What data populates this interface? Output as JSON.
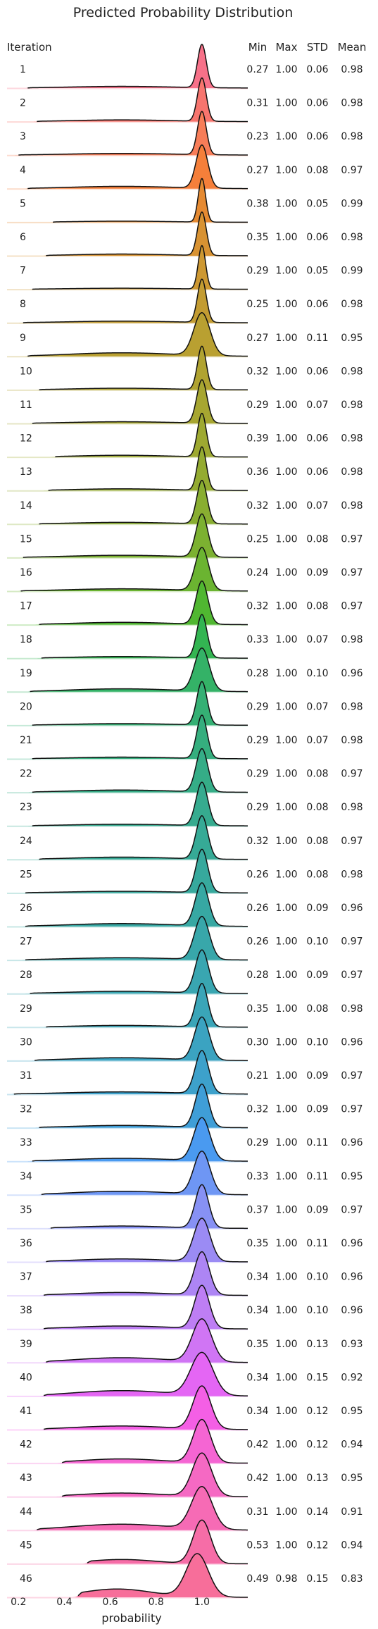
{
  "chart_data": {
    "type": "ridgeline",
    "title": "Predicted Probability Distribution",
    "xlabel": "probability",
    "xlim": [
      0.15,
      1.2
    ],
    "xticks": [
      0.2,
      0.4,
      0.6,
      0.8,
      1.0
    ],
    "xtick_labels": [
      "0.2",
      "0.4",
      "0.6",
      "0.8",
      "1.0"
    ],
    "row_header": "Iteration",
    "stat_headers": [
      "Min",
      "Max",
      "STD",
      "Mean"
    ],
    "rows": [
      {
        "iteration": "1",
        "min": "0.27",
        "max": "1.00",
        "std": "0.06",
        "mean": "0.98",
        "color": "#f77189"
      },
      {
        "iteration": "2",
        "min": "0.31",
        "max": "1.00",
        "std": "0.06",
        "mean": "0.98",
        "color": "#f7756e"
      },
      {
        "iteration": "3",
        "min": "0.23",
        "max": "1.00",
        "std": "0.06",
        "mean": "0.98",
        "color": "#f77d58"
      },
      {
        "iteration": "4",
        "min": "0.27",
        "max": "1.00",
        "std": "0.08",
        "mean": "0.97",
        "color": "#f57f3a"
      },
      {
        "iteration": "5",
        "min": "0.38",
        "max": "1.00",
        "std": "0.05",
        "mean": "0.99",
        "color": "#e58a32"
      },
      {
        "iteration": "6",
        "min": "0.35",
        "max": "1.00",
        "std": "0.06",
        "mean": "0.98",
        "color": "#d89232"
      },
      {
        "iteration": "7",
        "min": "0.29",
        "max": "1.00",
        "std": "0.05",
        "mean": "0.99",
        "color": "#cd9832"
      },
      {
        "iteration": "8",
        "min": "0.25",
        "max": "1.00",
        "std": "0.06",
        "mean": "0.98",
        "color": "#c39c32"
      },
      {
        "iteration": "9",
        "min": "0.27",
        "max": "1.00",
        "std": "0.11",
        "mean": "0.95",
        "color": "#b9a031"
      },
      {
        "iteration": "10",
        "min": "0.32",
        "max": "1.00",
        "std": "0.06",
        "mean": "0.98",
        "color": "#b0a331"
      },
      {
        "iteration": "11",
        "min": "0.29",
        "max": "1.00",
        "std": "0.07",
        "mean": "0.98",
        "color": "#a7a631"
      },
      {
        "iteration": "12",
        "min": "0.39",
        "max": "1.00",
        "std": "0.06",
        "mean": "0.98",
        "color": "#9ea931"
      },
      {
        "iteration": "13",
        "min": "0.36",
        "max": "1.00",
        "std": "0.06",
        "mean": "0.98",
        "color": "#94ab31"
      },
      {
        "iteration": "14",
        "min": "0.32",
        "max": "1.00",
        "std": "0.07",
        "mean": "0.98",
        "color": "#89ae31"
      },
      {
        "iteration": "15",
        "min": "0.25",
        "max": "1.00",
        "std": "0.08",
        "mean": "0.97",
        "color": "#7cb131"
      },
      {
        "iteration": "16",
        "min": "0.24",
        "max": "1.00",
        "std": "0.09",
        "mean": "0.97",
        "color": "#6bb431"
      },
      {
        "iteration": "17",
        "min": "0.32",
        "max": "1.00",
        "std": "0.08",
        "mean": "0.97",
        "color": "#50b731"
      },
      {
        "iteration": "18",
        "min": "0.33",
        "max": "1.00",
        "std": "0.07",
        "mean": "0.98",
        "color": "#33b552"
      },
      {
        "iteration": "19",
        "min": "0.28",
        "max": "1.00",
        "std": "0.10",
        "mean": "0.96",
        "color": "#34b267"
      },
      {
        "iteration": "20",
        "min": "0.29",
        "max": "1.00",
        "std": "0.07",
        "mean": "0.98",
        "color": "#35b074"
      },
      {
        "iteration": "21",
        "min": "0.29",
        "max": "1.00",
        "std": "0.07",
        "mean": "0.98",
        "color": "#35ae7e"
      },
      {
        "iteration": "22",
        "min": "0.29",
        "max": "1.00",
        "std": "0.08",
        "mean": "0.97",
        "color": "#35ad87"
      },
      {
        "iteration": "23",
        "min": "0.29",
        "max": "1.00",
        "std": "0.08",
        "mean": "0.98",
        "color": "#36ab8f"
      },
      {
        "iteration": "24",
        "min": "0.32",
        "max": "1.00",
        "std": "0.08",
        "mean": "0.97",
        "color": "#36aa96"
      },
      {
        "iteration": "25",
        "min": "0.26",
        "max": "1.00",
        "std": "0.08",
        "mean": "0.98",
        "color": "#37a99d"
      },
      {
        "iteration": "26",
        "min": "0.26",
        "max": "1.00",
        "std": "0.09",
        "mean": "0.96",
        "color": "#37a8a3"
      },
      {
        "iteration": "27",
        "min": "0.26",
        "max": "1.00",
        "std": "0.10",
        "mean": "0.97",
        "color": "#38a7aa"
      },
      {
        "iteration": "28",
        "min": "0.28",
        "max": "1.00",
        "std": "0.09",
        "mean": "0.97",
        "color": "#39a6b1"
      },
      {
        "iteration": "29",
        "min": "0.35",
        "max": "1.00",
        "std": "0.08",
        "mean": "0.98",
        "color": "#3aa5b8"
      },
      {
        "iteration": "30",
        "min": "0.30",
        "max": "1.00",
        "std": "0.10",
        "mean": "0.96",
        "color": "#3ba3c1"
      },
      {
        "iteration": "31",
        "min": "0.21",
        "max": "1.00",
        "std": "0.09",
        "mean": "0.97",
        "color": "#3da1cb"
      },
      {
        "iteration": "32",
        "min": "0.32",
        "max": "1.00",
        "std": "0.09",
        "mean": "0.97",
        "color": "#3f9ed7"
      },
      {
        "iteration": "33",
        "min": "0.29",
        "max": "1.00",
        "std": "0.11",
        "mean": "0.96",
        "color": "#4a9af0"
      },
      {
        "iteration": "34",
        "min": "0.33",
        "max": "1.00",
        "std": "0.11",
        "mean": "0.95",
        "color": "#6e96f4"
      },
      {
        "iteration": "35",
        "min": "0.37",
        "max": "1.00",
        "std": "0.09",
        "mean": "0.97",
        "color": "#8791f4"
      },
      {
        "iteration": "36",
        "min": "0.35",
        "max": "1.00",
        "std": "0.11",
        "mean": "0.96",
        "color": "#9b8bf4"
      },
      {
        "iteration": "37",
        "min": "0.34",
        "max": "1.00",
        "std": "0.10",
        "mean": "0.96",
        "color": "#ad85f4"
      },
      {
        "iteration": "38",
        "min": "0.34",
        "max": "1.00",
        "std": "0.10",
        "mean": "0.96",
        "color": "#be7ef4"
      },
      {
        "iteration": "39",
        "min": "0.35",
        "max": "1.00",
        "std": "0.13",
        "mean": "0.93",
        "color": "#d075f4"
      },
      {
        "iteration": "40",
        "min": "0.34",
        "max": "1.00",
        "std": "0.15",
        "mean": "0.92",
        "color": "#e466f4"
      },
      {
        "iteration": "41",
        "min": "0.34",
        "max": "1.00",
        "std": "0.12",
        "mean": "0.95",
        "color": "#f45fe5"
      },
      {
        "iteration": "42",
        "min": "0.42",
        "max": "1.00",
        "std": "0.12",
        "mean": "0.94",
        "color": "#f565d3"
      },
      {
        "iteration": "43",
        "min": "0.42",
        "max": "1.00",
        "std": "0.13",
        "mean": "0.95",
        "color": "#f569c3"
      },
      {
        "iteration": "44",
        "min": "0.31",
        "max": "1.00",
        "std": "0.14",
        "mean": "0.91",
        "color": "#f66bb5"
      },
      {
        "iteration": "45",
        "min": "0.53",
        "max": "1.00",
        "std": "0.12",
        "mean": "0.94",
        "color": "#f66da7"
      },
      {
        "iteration": "46",
        "min": "0.49",
        "max": "0.98",
        "std": "0.15",
        "mean": "0.83",
        "color": "#f76e9a"
      }
    ]
  }
}
